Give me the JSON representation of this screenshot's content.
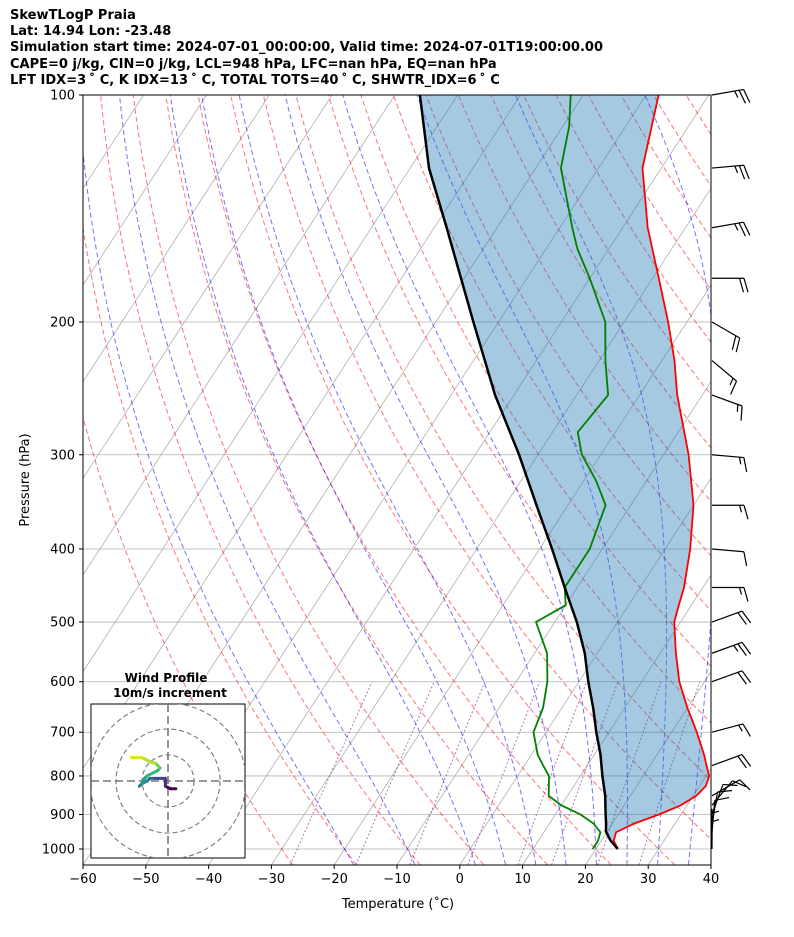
{
  "header": {
    "title": "SkewTLogP Praia",
    "location": "Lat: 14.94   Lon: -23.48",
    "times": "Simulation start time: 2024-07-01_00:00:00, Valid time: 2024-07-01T19:00:00.00",
    "indices1": "CAPE=0 j/kg, CIN=0 j/kg, LCL=948 hPa, LFC=nan hPa, EQ=nan hPa",
    "indices2": "LFT IDX=3 ˚ C, K IDX=13 ˚ C, TOTAL TOTS=40 ˚ C, SHWTR_IDX=6 ˚ C"
  },
  "chart_data": {
    "type": "skewt-logp",
    "xlabel": "Temperature (˚C)",
    "ylabel": "Pressure (hPa)",
    "xlim": [
      -60,
      40
    ],
    "ylim": [
      1050,
      100
    ],
    "x_ticks": [
      "−60",
      "−50",
      "−40",
      "−30",
      "−20",
      "−10",
      "0",
      "10",
      "20",
      "30",
      "40"
    ],
    "y_ticks": [
      "100",
      "200",
      "300",
      "400",
      "500",
      "600",
      "700",
      "800",
      "900",
      "1000"
    ],
    "skew_deg_per_decade": 78,
    "temperature": {
      "color": "#ff0000",
      "points": [
        [
          1000,
          23.5
        ],
        [
          975,
          22
        ],
        [
          950,
          21.5
        ],
        [
          925,
          23.5
        ],
        [
          900,
          26.5
        ],
        [
          875,
          29
        ],
        [
          850,
          30.5
        ],
        [
          825,
          31
        ],
        [
          800,
          30.5
        ],
        [
          775,
          29
        ],
        [
          750,
          27.5
        ],
        [
          700,
          24
        ],
        [
          650,
          20
        ],
        [
          600,
          16
        ],
        [
          550,
          12.5
        ],
        [
          500,
          9
        ],
        [
          475,
          8
        ],
        [
          450,
          7
        ],
        [
          400,
          4
        ],
        [
          350,
          0
        ],
        [
          300,
          -6
        ],
        [
          250,
          -14
        ],
        [
          225,
          -18
        ],
        [
          200,
          -23
        ],
        [
          175,
          -29
        ],
        [
          150,
          -36
        ],
        [
          125,
          -43
        ],
        [
          100,
          -48
        ]
      ]
    },
    "dewpoint": {
      "color": "#008000",
      "points": [
        [
          1000,
          19.5
        ],
        [
          975,
          19.5
        ],
        [
          950,
          19
        ],
        [
          925,
          17
        ],
        [
          900,
          14
        ],
        [
          875,
          10
        ],
        [
          850,
          7
        ],
        [
          800,
          5
        ],
        [
          775,
          3
        ],
        [
          750,
          1
        ],
        [
          700,
          -2
        ],
        [
          650,
          -3
        ],
        [
          600,
          -5
        ],
        [
          550,
          -8
        ],
        [
          500,
          -13
        ],
        [
          475,
          -10
        ],
        [
          450,
          -12
        ],
        [
          400,
          -12
        ],
        [
          350,
          -14
        ],
        [
          325,
          -18
        ],
        [
          300,
          -23
        ],
        [
          280,
          -26
        ],
        [
          250,
          -25
        ],
        [
          225,
          -29
        ],
        [
          200,
          -33
        ],
        [
          175,
          -40
        ],
        [
          160,
          -45
        ],
        [
          150,
          -48
        ],
        [
          125,
          -56
        ],
        [
          110,
          -59
        ],
        [
          100,
          -62
        ]
      ]
    },
    "parcel": {
      "color": "#000000",
      "points": [
        [
          1000,
          23.5
        ],
        [
          975,
          21.5
        ],
        [
          948,
          19.8
        ],
        [
          925,
          19
        ],
        [
          900,
          18
        ],
        [
          850,
          16
        ],
        [
          800,
          13.5
        ],
        [
          750,
          11
        ],
        [
          700,
          8
        ],
        [
          650,
          5
        ],
        [
          600,
          1.5
        ],
        [
          550,
          -2
        ],
        [
          500,
          -6.5
        ],
        [
          450,
          -12
        ],
        [
          400,
          -18
        ],
        [
          350,
          -25
        ],
        [
          300,
          -33
        ],
        [
          250,
          -43
        ],
        [
          200,
          -54
        ],
        [
          150,
          -68
        ],
        [
          125,
          -77
        ],
        [
          100,
          -86
        ]
      ]
    },
    "wind_barbs": [
      {
        "p": 100,
        "speed": 25,
        "dir": 80
      },
      {
        "p": 125,
        "speed": 25,
        "dir": 85
      },
      {
        "p": 150,
        "speed": 25,
        "dir": 80
      },
      {
        "p": 175,
        "speed": 20,
        "dir": 90
      },
      {
        "p": 200,
        "speed": 20,
        "dir": 120
      },
      {
        "p": 225,
        "speed": 15,
        "dir": 130
      },
      {
        "p": 250,
        "speed": 15,
        "dir": 110
      },
      {
        "p": 300,
        "speed": 15,
        "dir": 95
      },
      {
        "p": 350,
        "speed": 15,
        "dir": 90
      },
      {
        "p": 400,
        "speed": 10,
        "dir": 95
      },
      {
        "p": 450,
        "speed": 15,
        "dir": 90
      },
      {
        "p": 500,
        "speed": 20,
        "dir": 70
      },
      {
        "p": 550,
        "speed": 25,
        "dir": 70
      },
      {
        "p": 600,
        "speed": 20,
        "dir": 70
      },
      {
        "p": 700,
        "speed": 15,
        "dir": 75
      },
      {
        "p": 775,
        "speed": 20,
        "dir": 70
      },
      {
        "p": 850,
        "speed": 10,
        "dir": 60
      },
      {
        "p": 875,
        "speed": 10,
        "dir": 40
      },
      {
        "p": 900,
        "speed": 10,
        "dir": 20
      },
      {
        "p": 925,
        "speed": 10,
        "dir": 10
      },
      {
        "p": 950,
        "speed": 10,
        "dir": 5
      },
      {
        "p": 975,
        "speed": 5,
        "dir": 0
      },
      {
        "p": 1000,
        "speed": 5,
        "dir": 0
      }
    ],
    "hodograph": {
      "title": "Wind Profile",
      "subtitle": "10m/s increment",
      "ring_increment_ms": 10,
      "points": [
        [
          3,
          -3
        ],
        [
          1,
          -3
        ],
        [
          0,
          -2.5
        ],
        [
          -1,
          -2
        ],
        [
          -1,
          0
        ],
        [
          -1,
          1
        ],
        [
          -2,
          1
        ],
        [
          -4,
          1
        ],
        [
          -6,
          1
        ],
        [
          -7,
          1
        ],
        [
          -8,
          0
        ],
        [
          -10,
          -1
        ],
        [
          -11,
          -2
        ],
        [
          -10,
          -1
        ],
        [
          -9,
          1
        ],
        [
          -8,
          2
        ],
        [
          -6,
          3
        ],
        [
          -4,
          4
        ],
        [
          -3,
          5
        ],
        [
          -4,
          6
        ],
        [
          -5,
          7
        ],
        [
          -6,
          7
        ],
        [
          -8,
          8
        ],
        [
          -10,
          9
        ],
        [
          -12,
          9
        ],
        [
          -14,
          9
        ]
      ]
    }
  }
}
